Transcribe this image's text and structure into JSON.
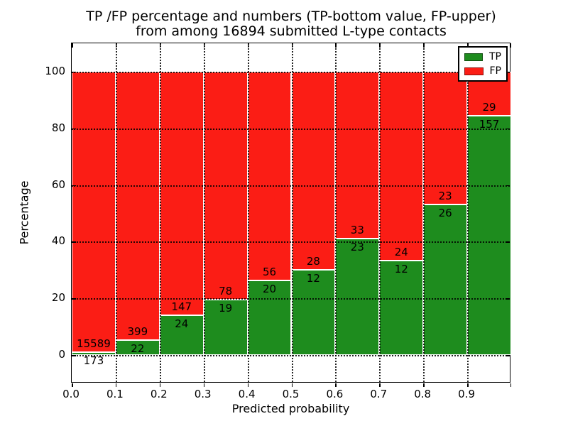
{
  "title": {
    "line1": "TP /FP percentage and numbers (TP-bottom value, FP-upper)",
    "line2": "from among 16894 submitted L-type contacts"
  },
  "legend": {
    "items": [
      {
        "label": "TP",
        "color": "#1e8c1e"
      },
      {
        "label": "FP",
        "color": "#fb1d15"
      }
    ]
  },
  "chart_data": {
    "type": "bar",
    "stacked": true,
    "title": "TP /FP percentage and numbers (TP-bottom value, FP-upper)\nfrom among 16894 submitted L-type contacts",
    "xlabel": "Predicted probability",
    "ylabel": "Percentage",
    "total_contacts": 16894,
    "bins": [
      "0.0-0.1",
      "0.1-0.2",
      "0.2-0.3",
      "0.3-0.4",
      "0.4-0.5",
      "0.5-0.6",
      "0.6-0.7",
      "0.7-0.8",
      "0.8-0.9",
      "0.9-1.0"
    ],
    "series": [
      {
        "name": "TP",
        "color": "#1e8c1e",
        "counts": [
          173,
          22,
          24,
          19,
          20,
          12,
          23,
          12,
          26,
          157
        ],
        "percent": [
          1.1,
          5.23,
          14.04,
          19.59,
          26.32,
          30.0,
          41.07,
          33.33,
          53.06,
          84.41
        ]
      },
      {
        "name": "FP",
        "color": "#fb1d15",
        "counts": [
          15589,
          399,
          147,
          78,
          56,
          28,
          33,
          24,
          23,
          29
        ],
        "percent": [
          98.9,
          94.77,
          85.96,
          80.41,
          73.68,
          70.0,
          58.93,
          66.67,
          46.94,
          15.59
        ]
      }
    ],
    "annotation_note": "TP-bottom value, FP-upper",
    "xticks": [
      "0.0",
      "0.1",
      "0.2",
      "0.3",
      "0.4",
      "0.5",
      "0.6",
      "0.7",
      "0.8",
      "0.9"
    ],
    "yticks": [
      "0",
      "20",
      "40",
      "60",
      "80",
      "100"
    ],
    "xlim": [
      0.0,
      1.0
    ],
    "ylim": [
      -10,
      110
    ],
    "grid": "dotted",
    "legend_position": "upper right"
  }
}
